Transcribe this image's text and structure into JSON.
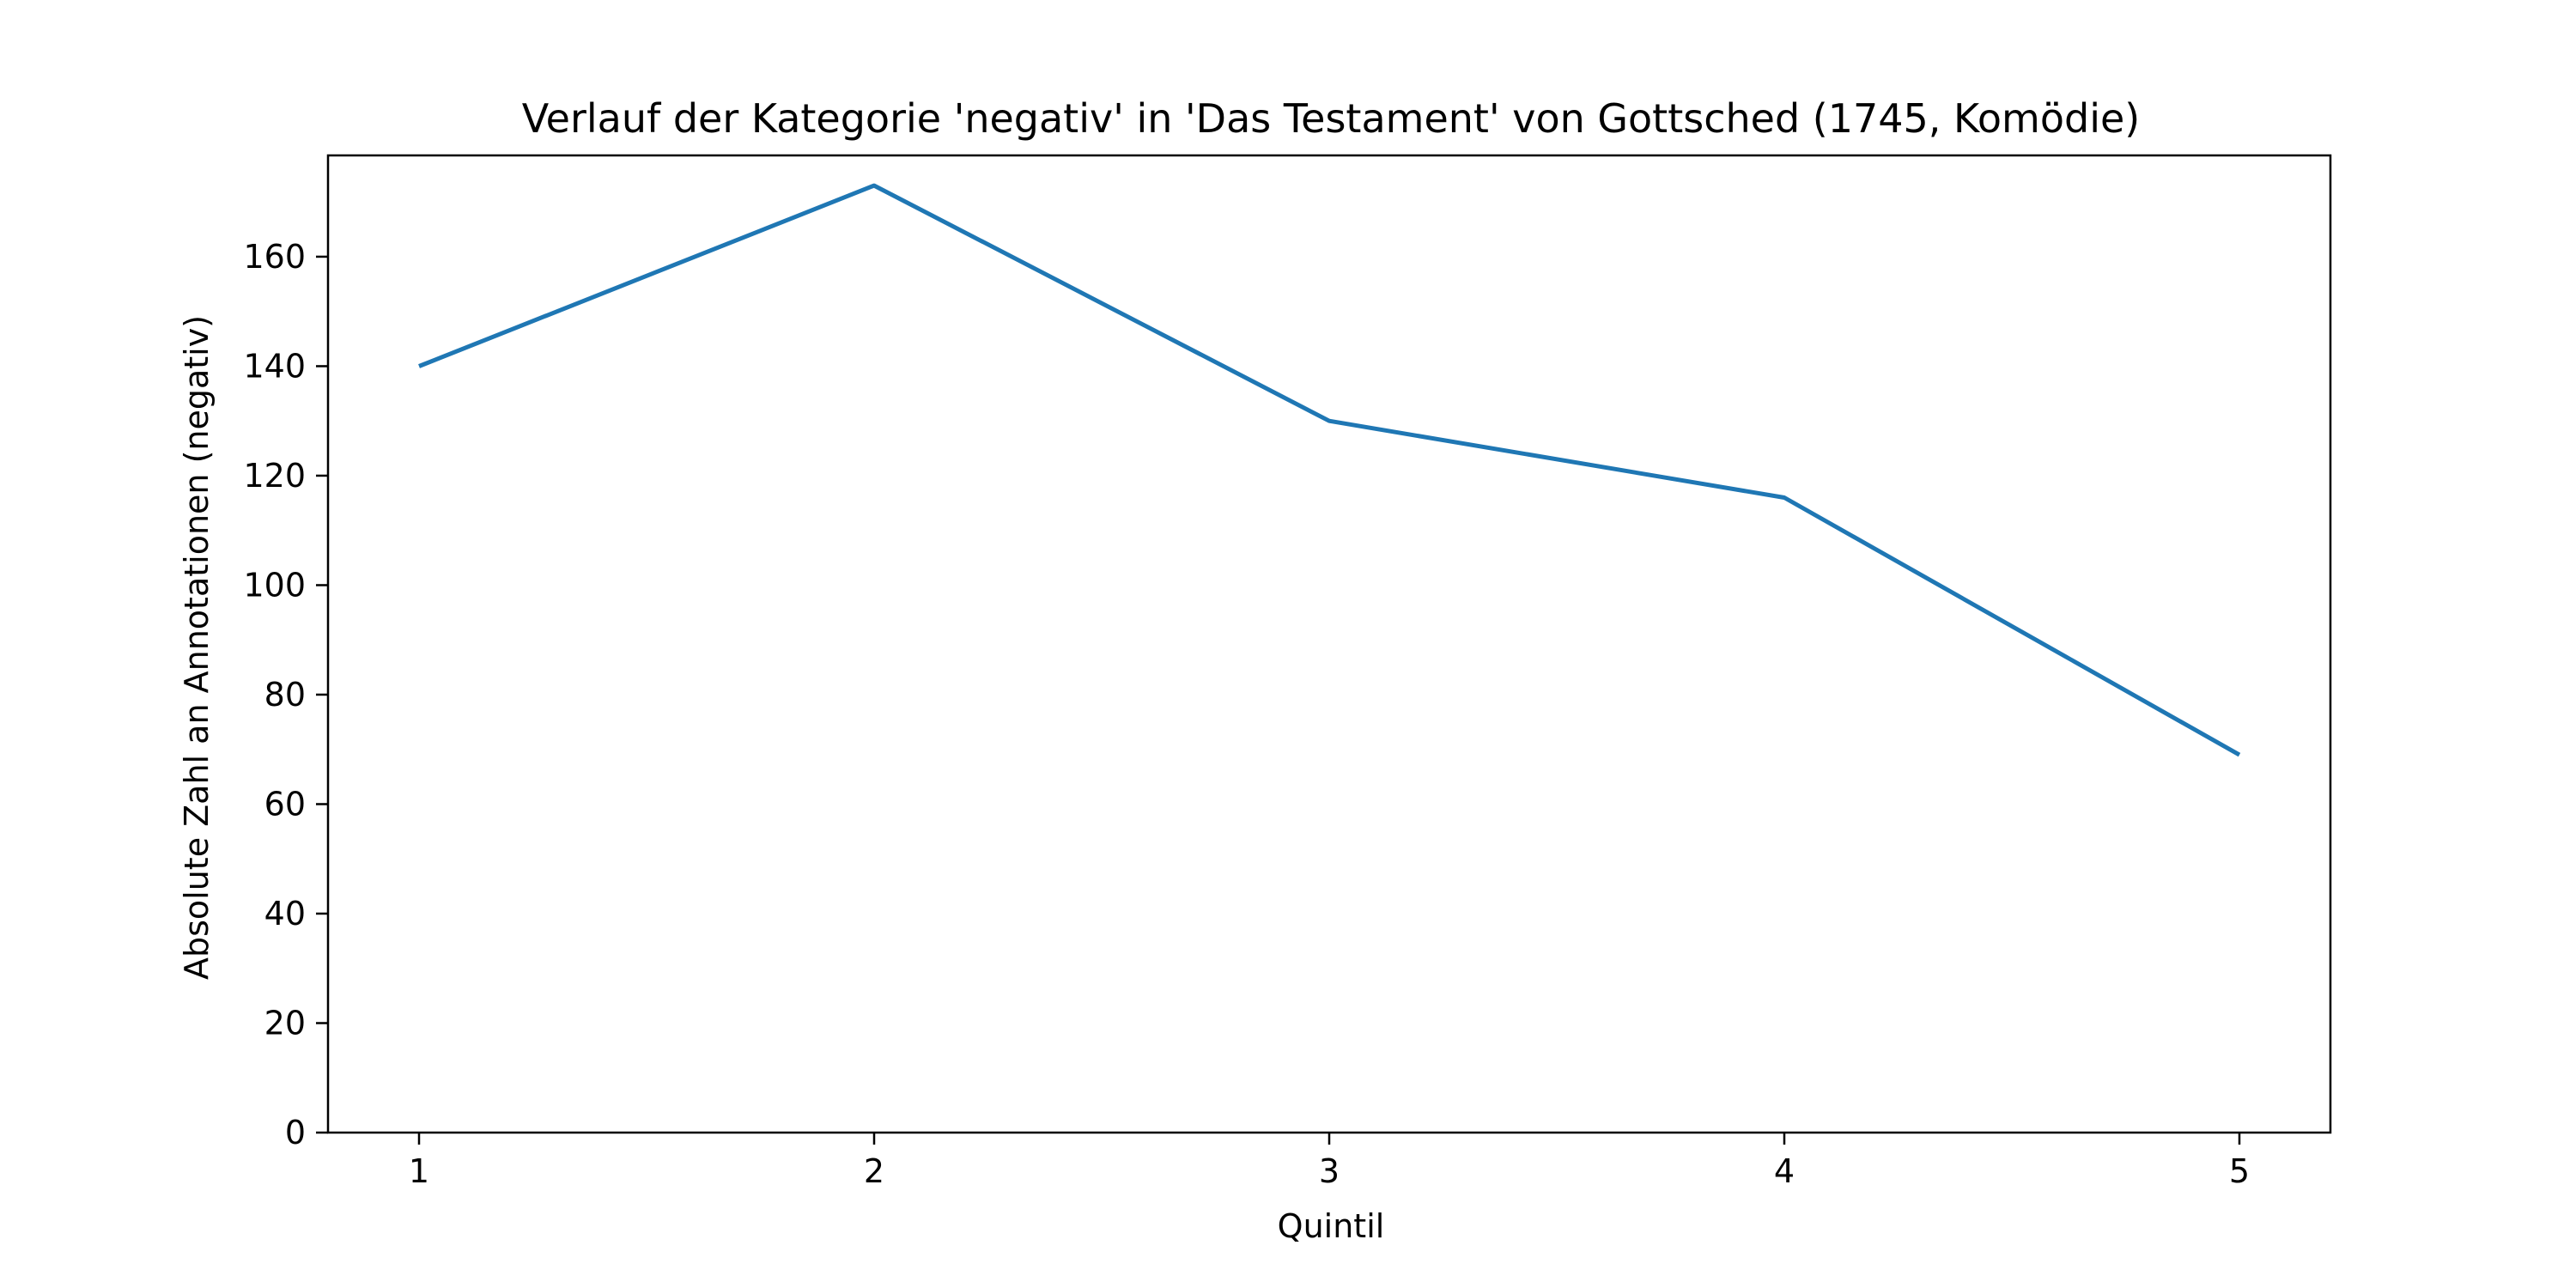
{
  "chart_data": {
    "type": "line",
    "title": "Verlauf der Kategorie 'negativ' in 'Das Testament' von Gottsched (1745, Komödie)",
    "xlabel": "Quintil",
    "ylabel": "Absolute Zahl an Annotationen (negativ)",
    "x": [
      1,
      2,
      3,
      4,
      5
    ],
    "series": [
      {
        "values": [
          140,
          173,
          130,
          116,
          69
        ],
        "color": "#1f77b4"
      }
    ],
    "xlim": [
      0.8,
      5.2
    ],
    "ylim": [
      0,
      178.5
    ],
    "xticks": [
      "1",
      "2",
      "3",
      "4",
      "5"
    ],
    "yticks": [
      "0",
      "20",
      "40",
      "60",
      "80",
      "100",
      "120",
      "140",
      "160"
    ],
    "grid": false,
    "legend": false
  }
}
